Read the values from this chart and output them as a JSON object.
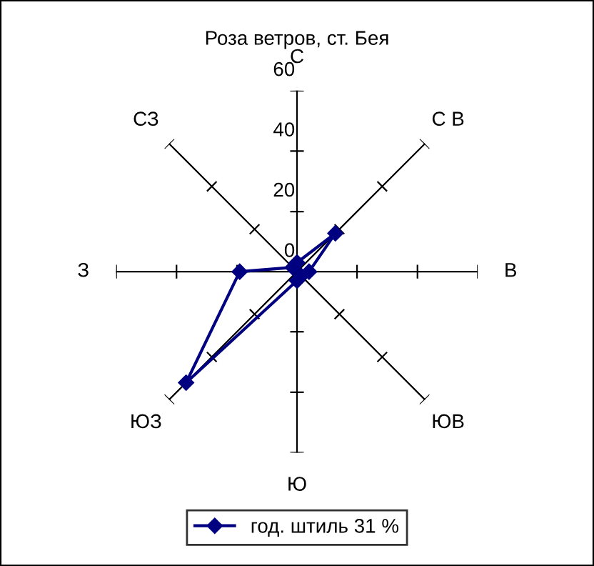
{
  "chart_data": {
    "type": "radar",
    "title": "Роза ветров, ст. Бея",
    "categories": [
      "С",
      "С В",
      "В",
      "ЮВ",
      "Ю",
      "ЮЗ",
      "З",
      "СЗ"
    ],
    "series": [
      {
        "name": "год. штиль 31 %",
        "color": "#000080",
        "values": [
          3,
          18,
          4,
          2,
          3,
          52,
          19,
          2
        ]
      }
    ],
    "ylim": [
      0,
      60
    ],
    "yticks": [
      0,
      20,
      40,
      60
    ],
    "grid": false,
    "legend": "bottom",
    "marker": "diamond",
    "line_style": "solid"
  }
}
